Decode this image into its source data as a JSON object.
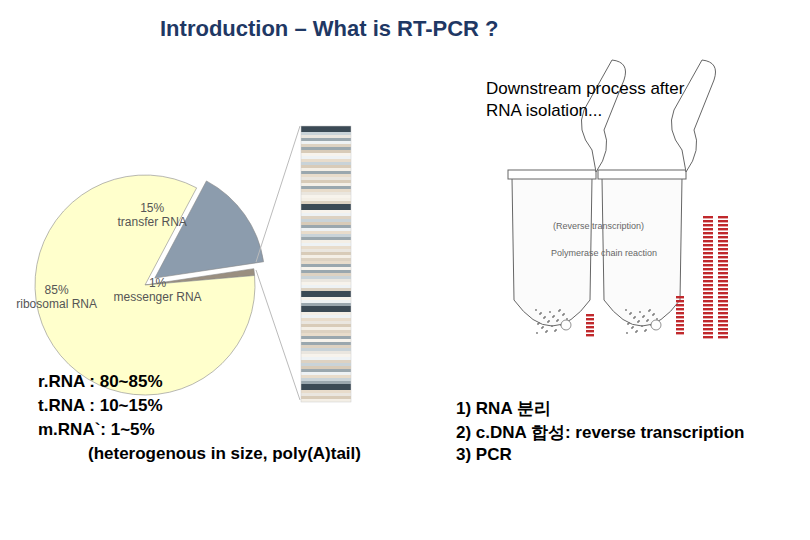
{
  "title": "Introduction – What is RT-PCR ?",
  "subtitle": [
    "Downstream process after",
    "RNA isolation..."
  ],
  "chart_data": {
    "type": "pie",
    "categories": [
      "transfer RNA",
      "messenger RNA",
      "ribosomal RNA"
    ],
    "values": [
      15,
      1,
      85
    ],
    "value_labels": [
      "15%",
      "1%",
      "85%"
    ],
    "colors": [
      "#8c9cad",
      "#9a8f80",
      "#ffffcc"
    ],
    "data_labels": true
  },
  "notes": [
    "r.RNA : 80~85%",
    "t.RNA : 10~15%",
    "m.RNA`: 1~5%",
    "(heterogenous in size, poly(A)tail)"
  ],
  "tube_labels": [
    "(Reverse transcription)",
    "Polymerase chain reaction"
  ],
  "steps": [
    "1) RNA 분리",
    "2) c.DNA 합성: reverse transcription",
    "3) PCR"
  ]
}
